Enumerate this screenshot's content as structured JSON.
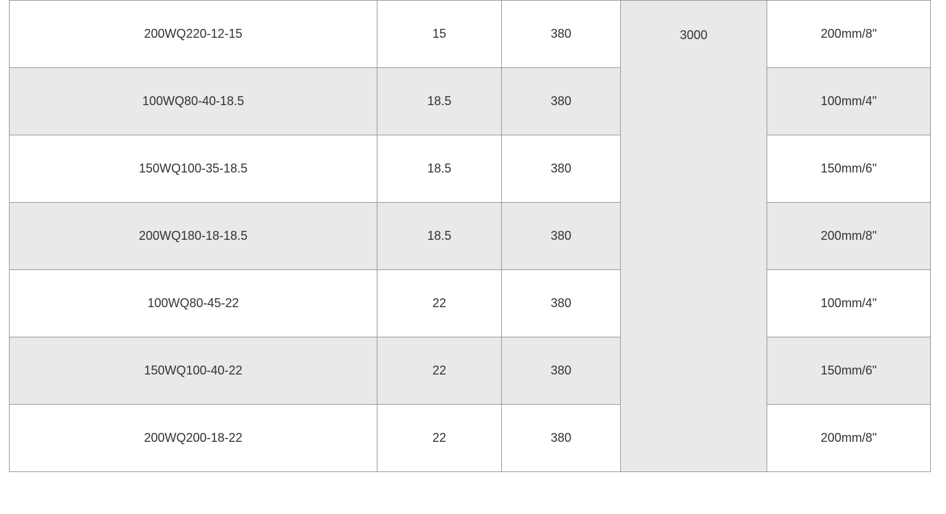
{
  "table": {
    "shared_speed": "3000",
    "rows": [
      {
        "model": "200WQ220-12-15",
        "power": "15",
        "voltage": "380",
        "outlet": "200mm/8\""
      },
      {
        "model": "100WQ80-40-18.5",
        "power": "18.5",
        "voltage": "380",
        "outlet": "100mm/4\""
      },
      {
        "model": "150WQ100-35-18.5",
        "power": "18.5",
        "voltage": "380",
        "outlet": "150mm/6\""
      },
      {
        "model": "200WQ180-18-18.5",
        "power": "18.5",
        "voltage": "380",
        "outlet": "200mm/8\""
      },
      {
        "model": "100WQ80-45-22",
        "power": "22",
        "voltage": "380",
        "outlet": "100mm/4\""
      },
      {
        "model": "150WQ100-40-22",
        "power": "22",
        "voltage": "380",
        "outlet": "150mm/6\""
      },
      {
        "model": "200WQ200-18-22",
        "power": "22",
        "voltage": "380",
        "outlet": "200mm/8\""
      }
    ]
  },
  "colors": {
    "alt_row": "#e8e9e8",
    "border": "#9a9a9a",
    "text": "#333333"
  }
}
